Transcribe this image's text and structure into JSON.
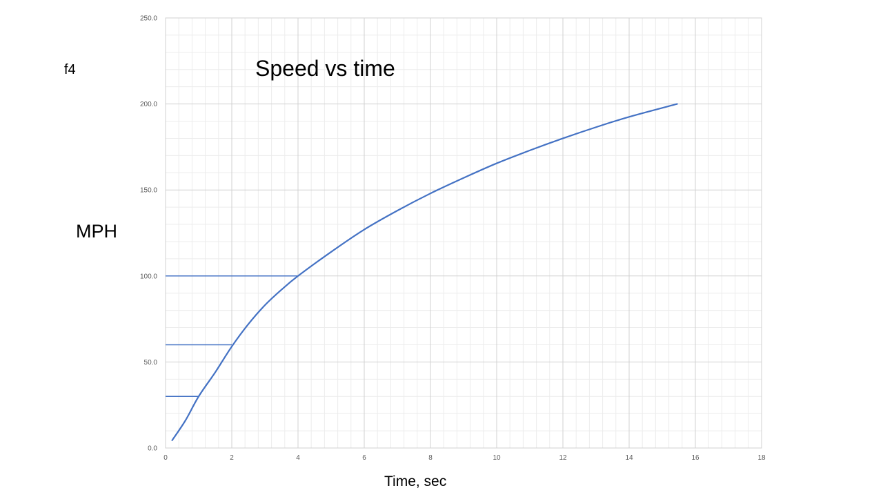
{
  "slide": {
    "corner_label": "f4"
  },
  "chart_data": {
    "type": "line",
    "title": "Speed vs time",
    "xlabel": "Time, sec",
    "ylabel": "MPH",
    "xlim": [
      0,
      18
    ],
    "ylim": [
      0,
      250
    ],
    "x_ticks": [
      0,
      2,
      4,
      6,
      8,
      10,
      12,
      14,
      16,
      18
    ],
    "y_ticks": [
      0,
      50,
      100,
      150,
      200,
      250
    ],
    "y_tick_labels": [
      "0.0",
      "50.0",
      "100.0",
      "150.0",
      "200.0",
      "250.0"
    ],
    "grid": "major and minor",
    "series": [
      {
        "color": "#4472c4",
        "points": [
          [
            0.2,
            4.5
          ],
          [
            0.6,
            16
          ],
          [
            1.0,
            30
          ],
          [
            1.5,
            44
          ],
          [
            2.0,
            59
          ],
          [
            2.5,
            72
          ],
          [
            3.0,
            83
          ],
          [
            3.5,
            92
          ],
          [
            4.0,
            100
          ],
          [
            5.0,
            114
          ],
          [
            6.0,
            127
          ],
          [
            7.0,
            138
          ],
          [
            8.0,
            148
          ],
          [
            9.0,
            157
          ],
          [
            10.0,
            165.5
          ],
          [
            11.0,
            173
          ],
          [
            12.0,
            180
          ],
          [
            13.0,
            186.5
          ],
          [
            14.0,
            192.5
          ],
          [
            15.45,
            200
          ]
        ]
      }
    ],
    "reference_lines": [
      {
        "y": 30,
        "x_end": 1.0
      },
      {
        "y": 60,
        "x_end": 2.0
      },
      {
        "y": 100,
        "x_end": 4.0
      }
    ],
    "colors": {
      "line": "#4472c4",
      "major_grid": "#d0d0d0",
      "minor_grid": "#ececec",
      "tick_text": "#595959"
    }
  }
}
